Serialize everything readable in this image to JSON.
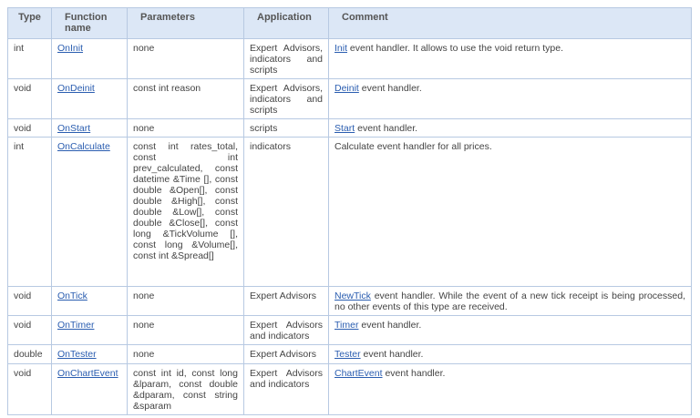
{
  "headers": {
    "type": "Type",
    "function": "Function name",
    "parameters": "Parameters",
    "application": "Application",
    "comment": "Comment"
  },
  "rows": [
    {
      "type": "int",
      "function": "OnInit",
      "parameters": "none",
      "application": "Expert Advisors, indicators and scripts",
      "comment_link": "Init",
      "comment": " event handler. It allows to use the void return type."
    },
    {
      "type": "void",
      "function": "OnDeinit",
      "parameters": "const int reason",
      "application": "Expert Advisors, indicators and scripts",
      "comment_link": "Deinit",
      "comment": " event handler."
    },
    {
      "type": "void",
      "function": "OnStart",
      "parameters": "none",
      "application": "scripts",
      "comment_link": "Start",
      "comment": " event handler."
    },
    {
      "type": "int",
      "function": "OnCalculate",
      "parameters": "const int rates_total, const int prev_calculated, const datetime &Time [], const double &Open[], const double &High[], const double &Low[], const double &Close[], const long &TickVolume [], const long &Volume[], const int &Spread[]",
      "application": "indicators",
      "comment_link": "",
      "comment": "Calculate event handler for all prices."
    },
    {
      "type": "void",
      "function": "OnTick",
      "parameters": "none",
      "application": "Expert Advisors",
      "comment_link": "NewTick",
      "comment": " event handler. While the event of a new tick receipt is being processed, no other events of this type are received."
    },
    {
      "type": "void",
      "function": "OnTimer",
      "parameters": "none",
      "application": "Expert Advisors and indicators",
      "comment_link": "Timer",
      "comment": " event handler."
    },
    {
      "type": "double",
      "function": "OnTester",
      "parameters": "none",
      "application": "Expert Advisors",
      "comment_link": "Tester",
      "comment": " event handler."
    },
    {
      "type": "void",
      "function": "OnChartEvent",
      "parameters": "const int id, const long &lparam, const double &dparam, const string &sparam",
      "application": "Expert Advisors and indicators",
      "comment_link": "ChartEvent",
      "comment": " event handler."
    }
  ]
}
